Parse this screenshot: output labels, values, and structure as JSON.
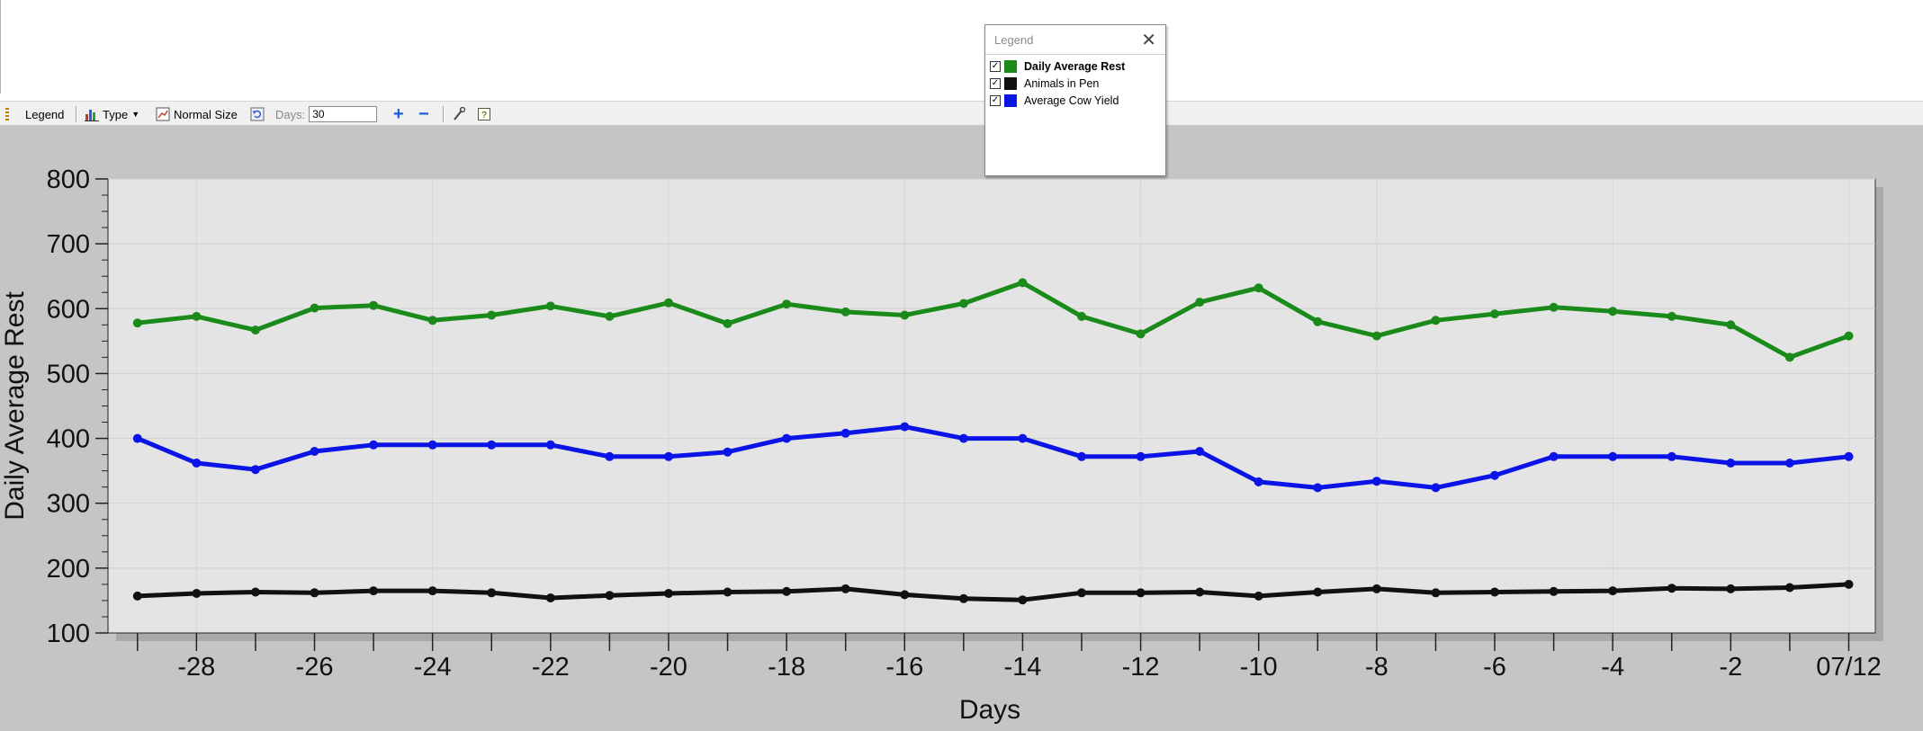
{
  "toolbar": {
    "legend_label": "Legend",
    "type_label": "Type",
    "normal_size_label": "Normal Size",
    "days_label": "Days:",
    "days_value": "30",
    "plus_label": "+",
    "minus_label": "−"
  },
  "legend_window": {
    "title": "Legend",
    "close": "✕",
    "items": [
      {
        "label": "Daily Average Rest",
        "color": "#1a8a1a",
        "checked": "✓"
      },
      {
        "label": "Animals in Pen",
        "color": "#111111",
        "checked": "✓"
      },
      {
        "label": "Average Cow Yield",
        "color": "#0a14e6",
        "checked": "✓"
      }
    ]
  },
  "chart_data": {
    "type": "line",
    "xlabel": "Days",
    "ylabel": "Daily Average Rest",
    "ylim": [
      100,
      800
    ],
    "yticks": [
      "100",
      "200",
      "300",
      "400",
      "500",
      "600",
      "700",
      "800"
    ],
    "x": [
      -29,
      -28,
      -27,
      -26,
      -25,
      -24,
      -23,
      -22,
      -21,
      -20,
      -19,
      -18,
      -17,
      -16,
      -15,
      -14,
      -13,
      -12,
      -11,
      -10,
      -9,
      -8,
      -7,
      -6,
      -5,
      -4,
      -3,
      -2,
      -1,
      0
    ],
    "xticks": [
      {
        "x": -28,
        "label": "-28"
      },
      {
        "x": -26,
        "label": "-26"
      },
      {
        "x": -24,
        "label": "-24"
      },
      {
        "x": -22,
        "label": "-22"
      },
      {
        "x": -20,
        "label": "-20"
      },
      {
        "x": -18,
        "label": "-18"
      },
      {
        "x": -16,
        "label": "-16"
      },
      {
        "x": -14,
        "label": "-14"
      },
      {
        "x": -12,
        "label": "-12"
      },
      {
        "x": -10,
        "label": "-10"
      },
      {
        "x": -8,
        "label": "-8"
      },
      {
        "x": -6,
        "label": "-6"
      },
      {
        "x": -4,
        "label": "-4"
      },
      {
        "x": -2,
        "label": "-2"
      },
      {
        "x": 0,
        "label": "07/12"
      }
    ],
    "grid": true,
    "series": [
      {
        "name": "Daily Average Rest",
        "color": "#1a8a1a",
        "values": [
          578,
          588,
          567,
          601,
          605,
          582,
          590,
          604,
          588,
          609,
          577,
          607,
          595,
          590,
          608,
          640,
          588,
          561,
          610,
          632,
          580,
          558,
          582,
          592,
          602,
          596,
          588,
          575,
          525,
          558
        ]
      },
      {
        "name": "Animals in Pen",
        "color": "#111111",
        "values": [
          157,
          161,
          163,
          162,
          165,
          165,
          162,
          154,
          158,
          161,
          163,
          164,
          168,
          159,
          153,
          151,
          162,
          162,
          163,
          157,
          163,
          168,
          162,
          163,
          164,
          165,
          169,
          168,
          170,
          175
        ]
      },
      {
        "name": "Average Cow Yield",
        "color": "#0a14e6",
        "values": [
          400,
          362,
          352,
          380,
          390,
          390,
          390,
          390,
          372,
          372,
          379,
          400,
          408,
          418,
          400,
          400,
          372,
          372,
          380,
          333,
          324,
          334,
          324,
          343,
          372,
          372,
          372,
          362,
          362,
          372
        ]
      }
    ]
  }
}
